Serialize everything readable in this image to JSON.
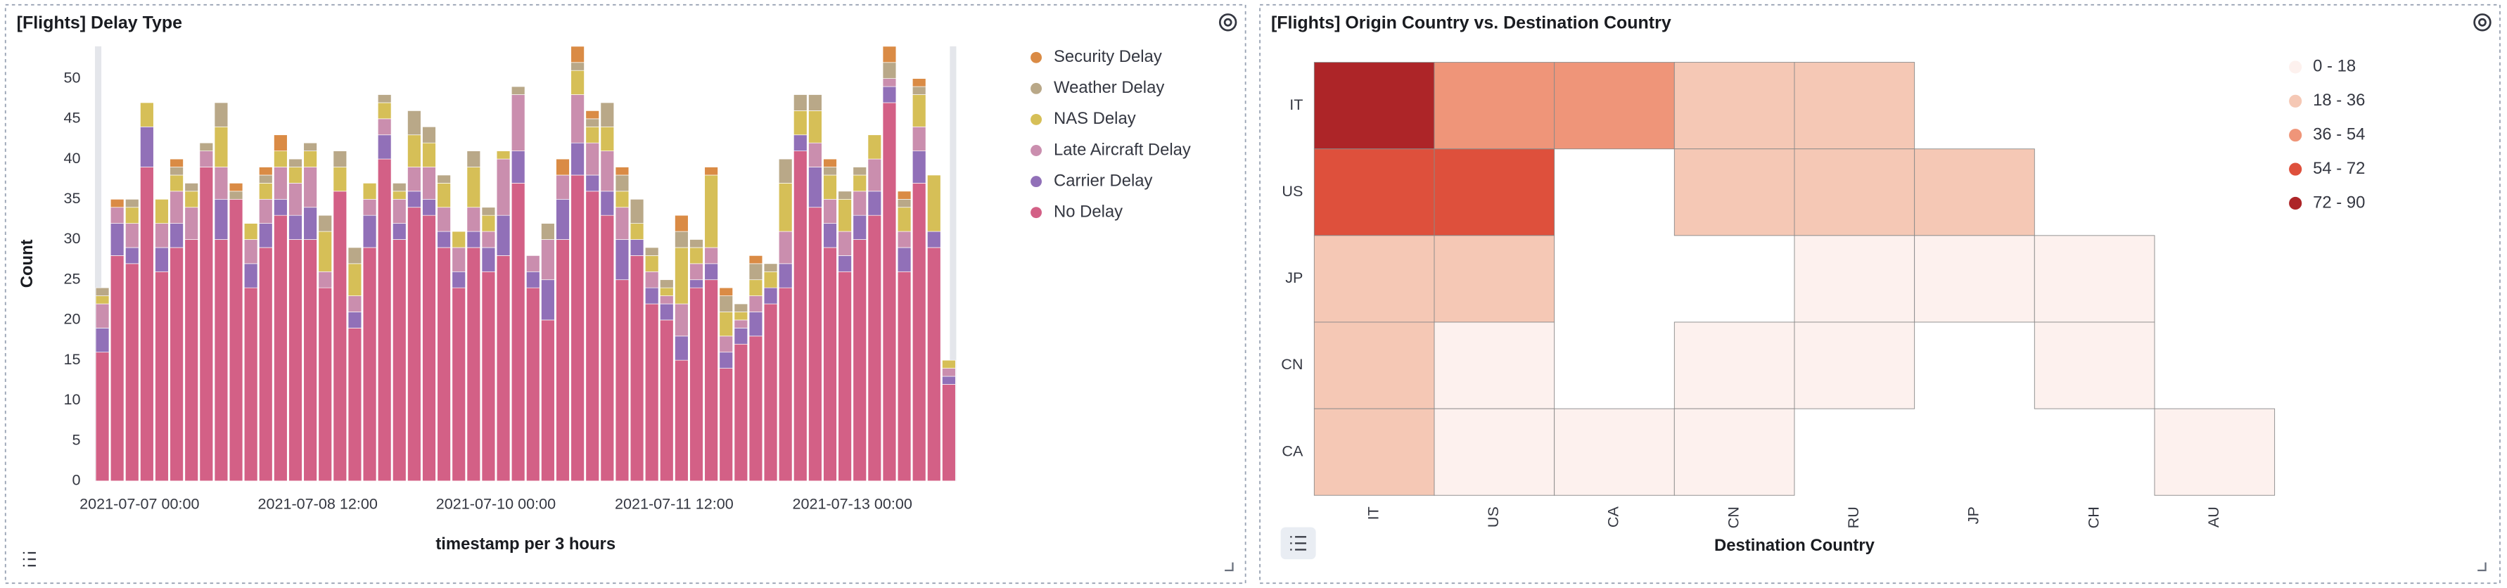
{
  "chart_data": [
    {
      "type": "bar",
      "stacked": true,
      "title": "[Flights] Delay Type",
      "y_label": "Count",
      "x_label": "timestamp per 3 hours",
      "legend": "right",
      "grid": false,
      "x": [
        "2021-07-06 15:00",
        "2021-07-06 18:00",
        "2021-07-06 21:00",
        "2021-07-07 00:00",
        "2021-07-07 03:00",
        "2021-07-07 06:00",
        "2021-07-07 09:00",
        "2021-07-07 12:00",
        "2021-07-07 15:00",
        "2021-07-07 18:00",
        "2021-07-07 21:00",
        "2021-07-08 00:00",
        "2021-07-08 03:00",
        "2021-07-08 06:00",
        "2021-07-08 09:00",
        "2021-07-08 12:00",
        "2021-07-08 15:00",
        "2021-07-08 18:00",
        "2021-07-08 21:00",
        "2021-07-09 00:00",
        "2021-07-09 03:00",
        "2021-07-09 06:00",
        "2021-07-09 09:00",
        "2021-07-09 12:00",
        "2021-07-09 15:00",
        "2021-07-09 18:00",
        "2021-07-09 21:00",
        "2021-07-10 00:00",
        "2021-07-10 03:00",
        "2021-07-10 06:00",
        "2021-07-10 09:00",
        "2021-07-10 12:00",
        "2021-07-10 15:00",
        "2021-07-10 18:00",
        "2021-07-10 21:00",
        "2021-07-11 00:00",
        "2021-07-11 03:00",
        "2021-07-11 06:00",
        "2021-07-11 09:00",
        "2021-07-11 12:00",
        "2021-07-11 15:00",
        "2021-07-11 18:00",
        "2021-07-11 21:00",
        "2021-07-12 00:00",
        "2021-07-12 03:00",
        "2021-07-12 06:00",
        "2021-07-12 09:00",
        "2021-07-12 12:00",
        "2021-07-12 15:00",
        "2021-07-12 18:00",
        "2021-07-12 21:00",
        "2021-07-13 00:00",
        "2021-07-13 03:00",
        "2021-07-13 06:00",
        "2021-07-13 09:00",
        "2021-07-13 12:00",
        "2021-07-13 15:00",
        "2021-07-13 18:00"
      ],
      "xticks": [
        "2021-07-07 00:00",
        "2021-07-08 12:00",
        "2021-07-10 00:00",
        "2021-07-11 12:00",
        "2021-07-13 00:00"
      ],
      "ylim": [
        0,
        54
      ],
      "yticks": [
        0,
        5,
        10,
        15,
        20,
        25,
        30,
        35,
        40,
        45,
        50
      ],
      "series": [
        {
          "name": "No Delay",
          "color": "#d36086",
          "values": [
            16,
            28,
            27,
            39,
            26,
            29,
            30,
            39,
            30,
            35,
            24,
            29,
            33,
            30,
            30,
            24,
            36,
            19,
            29,
            40,
            30,
            34,
            33,
            29,
            24,
            29,
            26,
            28,
            37,
            24,
            20,
            30,
            38,
            36,
            33,
            25,
            28,
            22,
            20,
            15,
            24,
            25,
            14,
            17,
            18,
            22,
            24,
            41,
            34,
            29,
            26,
            30,
            33,
            47,
            26,
            37,
            29,
            12
          ]
        },
        {
          "name": "Carrier Delay",
          "color": "#9170b8",
          "values": [
            3,
            4,
            2,
            5,
            3,
            3,
            0,
            0,
            5,
            0,
            3,
            3,
            2,
            3,
            4,
            0,
            0,
            2,
            4,
            3,
            2,
            2,
            2,
            2,
            2,
            2,
            3,
            5,
            4,
            2,
            5,
            5,
            4,
            2,
            3,
            5,
            2,
            2,
            2,
            3,
            1,
            2,
            2,
            2,
            3,
            2,
            3,
            2,
            5,
            3,
            2,
            3,
            3,
            2,
            3,
            4,
            2,
            1
          ]
        },
        {
          "name": "Late Aircraft Delay",
          "color": "#ca8eae",
          "values": [
            3,
            2,
            3,
            0,
            3,
            4,
            4,
            2,
            4,
            0,
            3,
            3,
            4,
            4,
            5,
            2,
            0,
            2,
            2,
            2,
            3,
            3,
            4,
            3,
            3,
            3,
            2,
            7,
            7,
            2,
            5,
            3,
            6,
            4,
            5,
            4,
            0,
            2,
            1,
            4,
            2,
            2,
            2,
            1,
            2,
            0,
            4,
            0,
            3,
            3,
            3,
            3,
            4,
            1,
            2,
            3,
            0,
            1
          ]
        },
        {
          "name": "NAS Delay",
          "color": "#d6bf57",
          "values": [
            1,
            0,
            2,
            3,
            3,
            2,
            2,
            0,
            5,
            0,
            2,
            2,
            2,
            2,
            2,
            5,
            3,
            4,
            2,
            2,
            1,
            4,
            3,
            3,
            2,
            5,
            2,
            1,
            0,
            0,
            0,
            0,
            3,
            2,
            3,
            2,
            2,
            2,
            1,
            7,
            2,
            9,
            3,
            1,
            2,
            2,
            6,
            3,
            4,
            3,
            4,
            2,
            3,
            0,
            3,
            4,
            7,
            1
          ]
        },
        {
          "name": "Weather Delay",
          "color": "#b9a888",
          "values": [
            1,
            0,
            1,
            0,
            0,
            1,
            1,
            1,
            3,
            1,
            0,
            1,
            0,
            1,
            1,
            2,
            2,
            2,
            0,
            1,
            1,
            3,
            2,
            1,
            0,
            2,
            1,
            0,
            1,
            0,
            2,
            0,
            1,
            1,
            3,
            2,
            3,
            1,
            1,
            2,
            1,
            0,
            2,
            1,
            2,
            1,
            3,
            2,
            2,
            1,
            1,
            1,
            0,
            2,
            1,
            1,
            0,
            0
          ]
        },
        {
          "name": "Security Delay",
          "color": "#da8b45",
          "values": [
            0,
            1,
            0,
            0,
            0,
            1,
            0,
            0,
            0,
            1,
            0,
            1,
            2,
            0,
            0,
            0,
            0,
            0,
            0,
            0,
            0,
            0,
            0,
            0,
            0,
            0,
            0,
            0,
            0,
            0,
            0,
            2,
            2,
            1,
            0,
            1,
            0,
            0,
            0,
            2,
            0,
            1,
            1,
            0,
            1,
            0,
            0,
            0,
            0,
            1,
            0,
            0,
            0,
            2,
            1,
            1,
            0,
            0
          ]
        }
      ]
    },
    {
      "type": "heatmap",
      "title": "[Flights] Origin Country vs. Destination Country",
      "x_label": "Destination Country",
      "legend": "right",
      "x": [
        "IT",
        "US",
        "CA",
        "CN",
        "RU",
        "JP",
        "CH",
        "AU"
      ],
      "y": [
        "IT",
        "US",
        "JP",
        "CN",
        "CA"
      ],
      "values": [
        [
          80,
          45,
          48,
          25,
          22,
          null,
          null,
          null
        ],
        [
          65,
          68,
          null,
          25,
          22,
          20,
          null,
          null
        ],
        [
          22,
          25,
          null,
          null,
          8,
          10,
          6,
          null
        ],
        [
          20,
          6,
          null,
          8,
          5,
          null,
          7,
          null
        ],
        [
          22,
          7,
          5,
          6,
          null,
          null,
          null,
          4
        ]
      ],
      "color_scale": [
        {
          "from": 0,
          "to": 18,
          "label": "0 - 18",
          "color": "#fdf1ee"
        },
        {
          "from": 18,
          "to": 36,
          "label": "18 - 36",
          "color": "#f5c8b5"
        },
        {
          "from": 36,
          "to": 54,
          "label": "36 - 54",
          "color": "#ef9579"
        },
        {
          "from": 54,
          "to": 72,
          "label": "54 - 72",
          "color": "#de503c"
        },
        {
          "from": 72,
          "to": 90,
          "label": "72 - 90",
          "color": "#ad2528"
        }
      ]
    }
  ]
}
